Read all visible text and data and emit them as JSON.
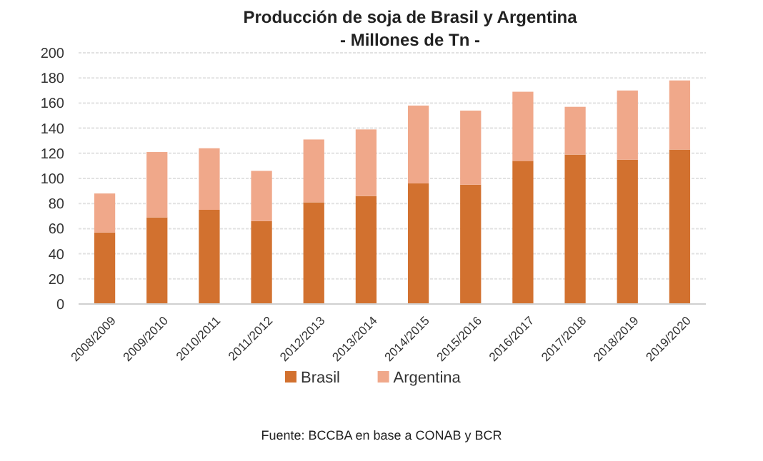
{
  "chart_data": {
    "type": "bar",
    "title": "Producción de soja de Brasil y Argentina",
    "subtitle": "- Millones de Tn -",
    "categories": [
      "2008/2009",
      "2009/2010",
      "2010/2011",
      "2011/2012",
      "2012/2013",
      "2013/2014",
      "2014/2015",
      "2015/2016",
      "2016/2017",
      "2017/2018",
      "2018/2019",
      "2019/2020"
    ],
    "series": [
      {
        "name": "Brasil",
        "color": "#d2712f",
        "values": [
          57,
          69,
          75,
          66,
          81,
          86,
          96,
          95,
          114,
          119,
          115,
          123
        ]
      },
      {
        "name": "Argentina",
        "color": "#f0a88a",
        "values": [
          31,
          52,
          49,
          40,
          50,
          53,
          62,
          59,
          55,
          38,
          55,
          55
        ]
      }
    ],
    "stacked": true,
    "ylim": [
      0,
      200
    ],
    "yticks": [
      0,
      20,
      40,
      60,
      80,
      100,
      120,
      140,
      160,
      180,
      200
    ],
    "grid": "y",
    "legend": "bottom",
    "annotations": [
      "Fuente: BCCBA en base a CONAB y BCR"
    ]
  }
}
